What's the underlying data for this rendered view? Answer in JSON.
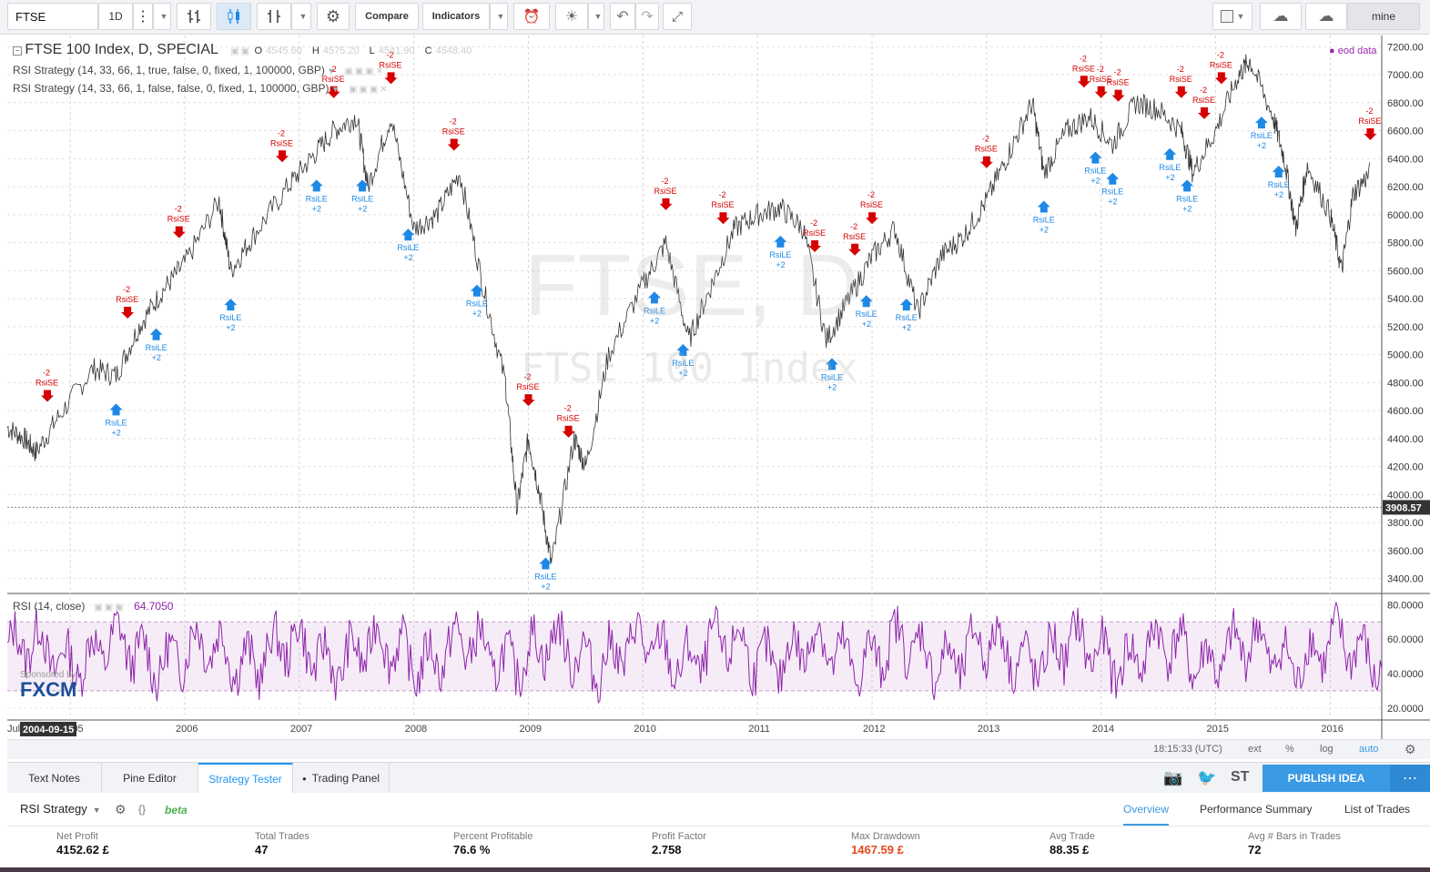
{
  "toolbar": {
    "symbol": "FTSE",
    "interval": "1D",
    "compare_label": "Compare",
    "indicators_label": "Indicators",
    "layout_label": "mine"
  },
  "legend": {
    "title": "FTSE 100 Index, D, SPECIAL",
    "open_label": "O",
    "open_value": "4545.60",
    "high_label": "H",
    "high_value": "4575.20",
    "low_label": "L",
    "low_value": "4541.90",
    "close_label": "C",
    "close_value": "4548.40",
    "strategy1": "RSI Strategy (14, 33, 66, 1, true, false, 0, fixed, 1, 100000, GBP)",
    "strategy2": "RSI Strategy (14, 33, 66, 1, false, false, 0, fixed, 1, 100000, GBP)",
    "eod_label": "eod data",
    "watermark_symbol": "FTSE, D",
    "watermark_name": "FTSE 100 Index",
    "rsi_label": "RSI (14, close)",
    "rsi_value": "64.7050",
    "sponsor_label": "Sponsored by",
    "sponsor_brand": "FXCM"
  },
  "chart_data": [
    {
      "type": "line",
      "name": "price",
      "x_years": [
        "2005",
        "2006",
        "2007",
        "2008",
        "2009",
        "2010",
        "2011",
        "2012",
        "2013",
        "2014",
        "2015",
        "2016"
      ],
      "y_ticks": [
        "7200.00",
        "7000.00",
        "6800.00",
        "6600.00",
        "6400.00",
        "6200.00",
        "6000.00",
        "5800.00",
        "5600.00",
        "5400.00",
        "5200.00",
        "5000.00",
        "4800.00",
        "4600.00",
        "4400.00",
        "4200.00",
        "4000.00",
        "3800.00",
        "3600.00",
        "3400.00"
      ],
      "ylim": [
        3300,
        7280
      ],
      "last_price_label": "3908.57",
      "crosshair_date": "2004-09-15",
      "x_start_fragment": "Jul",
      "path_points": [
        [
          2004.45,
          4480
        ],
        [
          2004.6,
          4400
        ],
        [
          2004.7,
          4300
        ],
        [
          2004.9,
          4560
        ],
        [
          2005.2,
          4900
        ],
        [
          2005.4,
          4850
        ],
        [
          2005.6,
          5200
        ],
        [
          2005.8,
          5450
        ],
        [
          2006.0,
          5650
        ],
        [
          2006.3,
          6100
        ],
        [
          2006.4,
          5600
        ],
        [
          2006.6,
          5850
        ],
        [
          2006.9,
          6200
        ],
        [
          2007.1,
          6400
        ],
        [
          2007.3,
          6600
        ],
        [
          2007.5,
          6700
        ],
        [
          2007.6,
          6200
        ],
        [
          2007.8,
          6700
        ],
        [
          2008.0,
          5900
        ],
        [
          2008.2,
          6000
        ],
        [
          2008.4,
          6300
        ],
        [
          2008.6,
          5500
        ],
        [
          2008.8,
          4800
        ],
        [
          2008.9,
          3900
        ],
        [
          2009.0,
          4400
        ],
        [
          2009.1,
          4000
        ],
        [
          2009.2,
          3500
        ],
        [
          2009.4,
          4400
        ],
        [
          2009.5,
          4200
        ],
        [
          2009.7,
          5000
        ],
        [
          2010.0,
          5500
        ],
        [
          2010.2,
          5800
        ],
        [
          2010.4,
          5100
        ],
        [
          2010.6,
          5500
        ],
        [
          2010.8,
          5900
        ],
        [
          2011.0,
          6000
        ],
        [
          2011.2,
          6050
        ],
        [
          2011.4,
          5900
        ],
        [
          2011.6,
          5100
        ],
        [
          2011.8,
          5400
        ],
        [
          2012.0,
          5700
        ],
        [
          2012.2,
          5900
        ],
        [
          2012.4,
          5300
        ],
        [
          2012.6,
          5700
        ],
        [
          2012.8,
          5850
        ],
        [
          2013.0,
          6100
        ],
        [
          2013.2,
          6450
        ],
        [
          2013.4,
          6800
        ],
        [
          2013.5,
          6300
        ],
        [
          2013.7,
          6600
        ],
        [
          2013.9,
          6700
        ],
        [
          2014.1,
          6500
        ],
        [
          2014.3,
          6800
        ],
        [
          2014.5,
          6750
        ],
        [
          2014.7,
          6600
        ],
        [
          2014.8,
          6300
        ],
        [
          2015.0,
          6600
        ],
        [
          2015.2,
          7000
        ],
        [
          2015.3,
          7100
        ],
        [
          2015.5,
          6700
        ],
        [
          2015.6,
          6400
        ],
        [
          2015.7,
          5900
        ],
        [
          2015.8,
          6350
        ],
        [
          2016.0,
          6000
        ],
        [
          2016.1,
          5600
        ],
        [
          2016.2,
          6150
        ],
        [
          2016.35,
          6300
        ]
      ],
      "long_marker_label": "RsiLE",
      "long_marker_qty": "+2",
      "short_marker_label": "RsiSE",
      "short_marker_qty": "-2"
    },
    {
      "type": "line",
      "name": "RSI (14, close)",
      "y_ticks": [
        "80.0000",
        "60.0000",
        "40.0000",
        "20.0000"
      ],
      "ylim": [
        13,
        86
      ],
      "band": [
        30,
        70
      ],
      "line_color": "#8e24aa"
    }
  ],
  "status": {
    "time": "18:15:33 (UTC)",
    "ext": "ext",
    "percent": "%",
    "log": "log",
    "auto": "auto"
  },
  "bottom_tabs": [
    "Text Notes",
    "Pine Editor",
    "Strategy Tester",
    "Trading Panel"
  ],
  "publish_label": "PUBLISH IDEA",
  "st_label": "ST",
  "strategy_panel": {
    "name": "RSI Strategy",
    "braces": "{}",
    "beta": "beta",
    "tabs": [
      "Overview",
      "Performance Summary",
      "List of Trades"
    ],
    "metrics": [
      {
        "label": "Net Profit",
        "value": "4152.62 £"
      },
      {
        "label": "Total Trades",
        "value": "47"
      },
      {
        "label": "Percent Profitable",
        "value": "76.6 %"
      },
      {
        "label": "Profit Factor",
        "value": "2.758"
      },
      {
        "label": "Max Drawdown",
        "value": "1467.59 £"
      },
      {
        "label": "Avg Trade",
        "value": "88.35 £"
      },
      {
        "label": "Avg # Bars in Trades",
        "value": "72"
      }
    ]
  },
  "colors": {
    "accent": "#3a9ae3",
    "long": "#1e88e5",
    "short": "#d50000",
    "rsi": "#8e24aa",
    "drawdown": "#e64a19"
  }
}
